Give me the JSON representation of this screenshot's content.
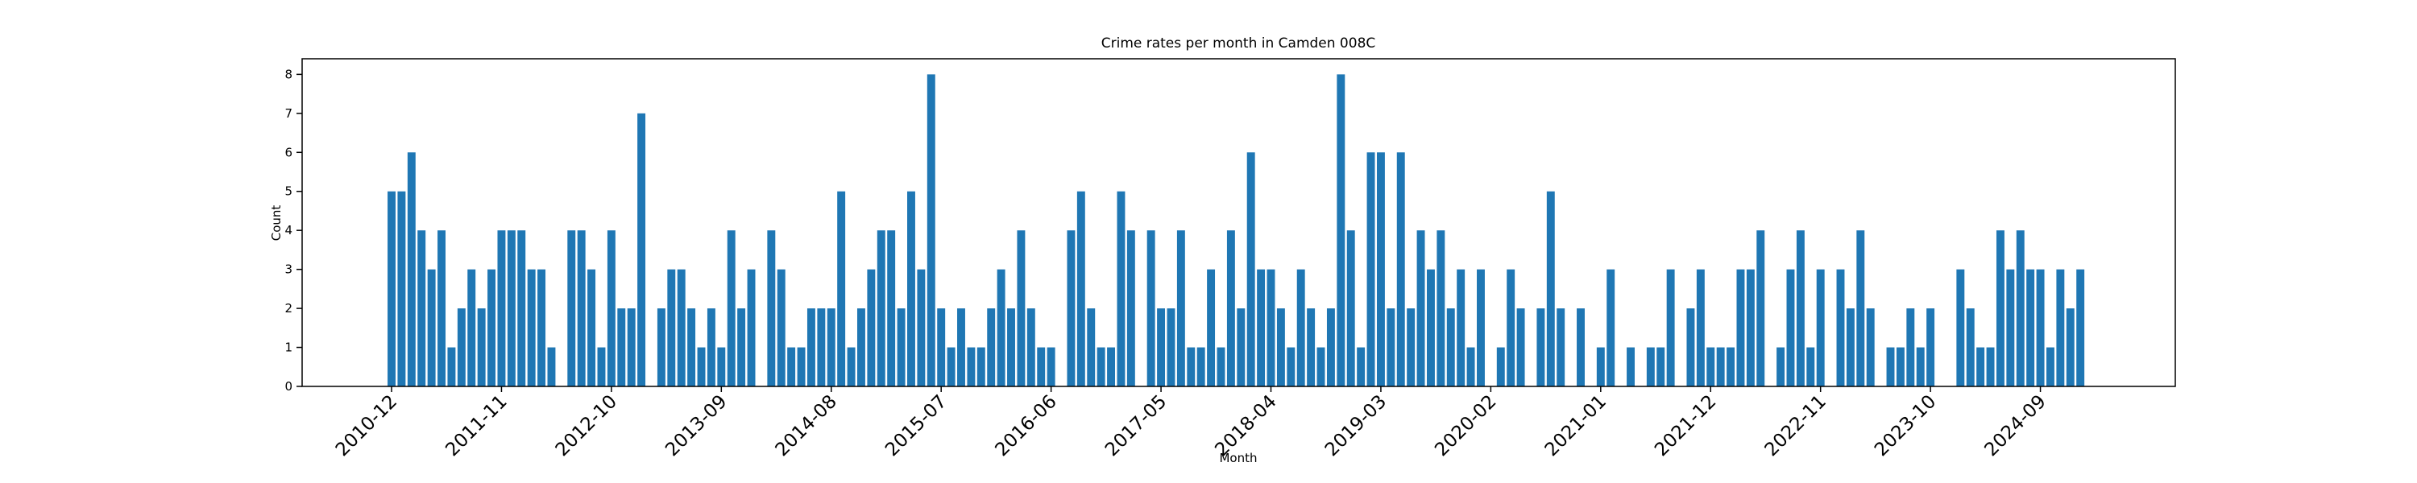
{
  "chart_data": {
    "type": "bar",
    "title": "Crime rates per month in Camden 008C",
    "xlabel": "Month",
    "ylabel": "Count",
    "color": "#1f77b4",
    "categories": [
      "2010-12",
      null,
      null,
      null,
      null,
      null,
      null,
      null,
      null,
      null,
      null,
      "2011-11",
      null,
      null,
      null,
      null,
      null,
      null,
      null,
      null,
      null,
      null,
      "2012-10",
      null,
      null,
      null,
      null,
      null,
      null,
      null,
      null,
      null,
      null,
      "2013-09",
      null,
      null,
      null,
      null,
      null,
      null,
      null,
      null,
      null,
      null,
      "2014-08",
      null,
      null,
      null,
      null,
      null,
      null,
      null,
      null,
      null,
      null,
      "2015-07",
      null,
      null,
      null,
      null,
      null,
      null,
      null,
      null,
      null,
      null,
      "2016-06",
      null,
      null,
      null,
      null,
      null,
      null,
      null,
      null,
      null,
      null,
      "2017-05",
      null,
      null,
      null,
      null,
      null,
      null,
      null,
      null,
      null,
      null,
      "2018-04",
      null,
      null,
      null,
      null,
      null,
      null,
      null,
      null,
      null,
      null,
      "2019-03",
      null,
      null,
      null,
      null,
      null,
      null,
      null,
      null,
      null,
      null,
      "2020-02",
      null,
      null,
      null,
      null,
      null,
      null,
      null,
      null,
      null,
      null,
      "2021-01",
      null,
      null,
      null,
      null,
      null,
      null,
      null,
      null,
      null,
      null,
      "2021-12",
      null,
      null,
      null,
      null,
      null,
      null,
      null,
      null,
      null,
      null,
      "2022-11",
      null,
      null,
      null,
      null,
      null,
      null,
      null,
      null,
      null,
      null,
      "2023-10",
      null,
      null,
      null,
      null,
      null,
      null,
      null,
      null,
      null,
      null,
      "2024-09",
      null,
      null,
      null,
      null
    ],
    "values": [
      5,
      5,
      6,
      4,
      3,
      4,
      1,
      2,
      3,
      2,
      3,
      4,
      4,
      4,
      3,
      3,
      1,
      0,
      4,
      4,
      3,
      1,
      4,
      2,
      2,
      7,
      0,
      2,
      3,
      3,
      2,
      1,
      2,
      1,
      4,
      2,
      3,
      0,
      4,
      3,
      1,
      1,
      2,
      2,
      2,
      5,
      1,
      2,
      3,
      4,
      4,
      2,
      5,
      3,
      8,
      2,
      1,
      2,
      1,
      1,
      2,
      3,
      2,
      4,
      2,
      1,
      1,
      0,
      4,
      5,
      2,
      1,
      1,
      5,
      4,
      0,
      4,
      2,
      2,
      4,
      1,
      1,
      3,
      1,
      4,
      2,
      6,
      3,
      3,
      2,
      1,
      3,
      2,
      1,
      2,
      8,
      4,
      1,
      6,
      6,
      2,
      6,
      2,
      4,
      3,
      4,
      2,
      3,
      1,
      3,
      0,
      1,
      3,
      2,
      0,
      2,
      5,
      2,
      0,
      2,
      0,
      1,
      3,
      0,
      1,
      0,
      1,
      1,
      3,
      0,
      2,
      3,
      1,
      1,
      1,
      3,
      3,
      4,
      0,
      1,
      3,
      4,
      1,
      3,
      0,
      3,
      2,
      4,
      2,
      0,
      1,
      1,
      2,
      1,
      2,
      0,
      0,
      3,
      2,
      1,
      1,
      4,
      3,
      4,
      3,
      3,
      1,
      3,
      2,
      3
    ],
    "ylim": [
      0,
      8.4
    ],
    "yticks": [
      0,
      1,
      2,
      3,
      4,
      5,
      6,
      7,
      8
    ],
    "grid": false
  }
}
